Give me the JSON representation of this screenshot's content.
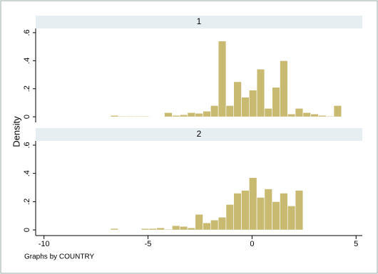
{
  "y_label": "Density",
  "note": "Graphs by COUNTRY",
  "chart_data": [
    {
      "type": "histogram",
      "title": "1",
      "color": "#c9ba72",
      "bins": [
        -6.8,
        -6.43,
        -6.06,
        -5.69,
        -5.32,
        -4.95,
        -4.58,
        -4.21,
        -3.84,
        -3.47,
        -3.1,
        -2.73,
        -2.36,
        -1.99,
        -1.62,
        -1.25,
        -0.88,
        -0.51,
        -0.14,
        0.23,
        0.6,
        0.97,
        1.34,
        1.71,
        2.08,
        2.45,
        2.82,
        3.19,
        3.56,
        3.93,
        4.3
      ],
      "values": [
        0.01,
        0.005,
        0.005,
        0.005,
        0.005,
        0.003,
        0,
        0.03,
        0.01,
        0.015,
        0.03,
        0.025,
        0.04,
        0.08,
        0.54,
        0.08,
        0.25,
        0.14,
        0.19,
        0.34,
        0.06,
        0.21,
        0.4,
        0.02,
        0.06,
        0.03,
        0.02,
        0.01,
        0.005,
        0.08
      ],
      "xlim": [
        -10.4,
        5.3
      ],
      "ylim": [
        -0.04,
        0.63
      ],
      "yticks": [
        0,
        {
          "value": 0.2,
          "label": ".2"
        },
        {
          "value": 0.4,
          "label": ".4"
        },
        {
          "value": 0.6,
          "label": ".6"
        }
      ]
    },
    {
      "type": "histogram",
      "title": "2",
      "color": "#c9ba72",
      "bins": [
        -6.8,
        -6.43,
        -6.06,
        -5.69,
        -5.32,
        -4.95,
        -4.58,
        -4.21,
        -3.84,
        -3.47,
        -3.1,
        -2.73,
        -2.36,
        -1.99,
        -1.62,
        -1.25,
        -0.88,
        -0.51,
        -0.14,
        0.23,
        0.6,
        0.97,
        1.34,
        1.71,
        2.08,
        2.45,
        2.82,
        3.19,
        3.56,
        3.93,
        4.3
      ],
      "values": [
        0.01,
        0,
        0,
        0,
        0.01,
        0.01,
        0.015,
        0.005,
        0.03,
        0.025,
        0.015,
        0.11,
        0.05,
        0.07,
        0.09,
        0.18,
        0.26,
        0.28,
        0.37,
        0.23,
        0.29,
        0.2,
        0.26,
        0.17,
        0.28,
        0,
        0,
        0,
        0,
        0
      ],
      "xlim": [
        -10.4,
        5.3
      ],
      "ylim": [
        -0.04,
        0.63
      ],
      "yticks": [
        0,
        {
          "value": 0.2,
          "label": ".2"
        },
        {
          "value": 0.4,
          "label": ".4"
        },
        {
          "value": 0.6,
          "label": ".6"
        }
      ],
      "xticks": [
        -10,
        -5,
        0,
        5
      ]
    }
  ]
}
